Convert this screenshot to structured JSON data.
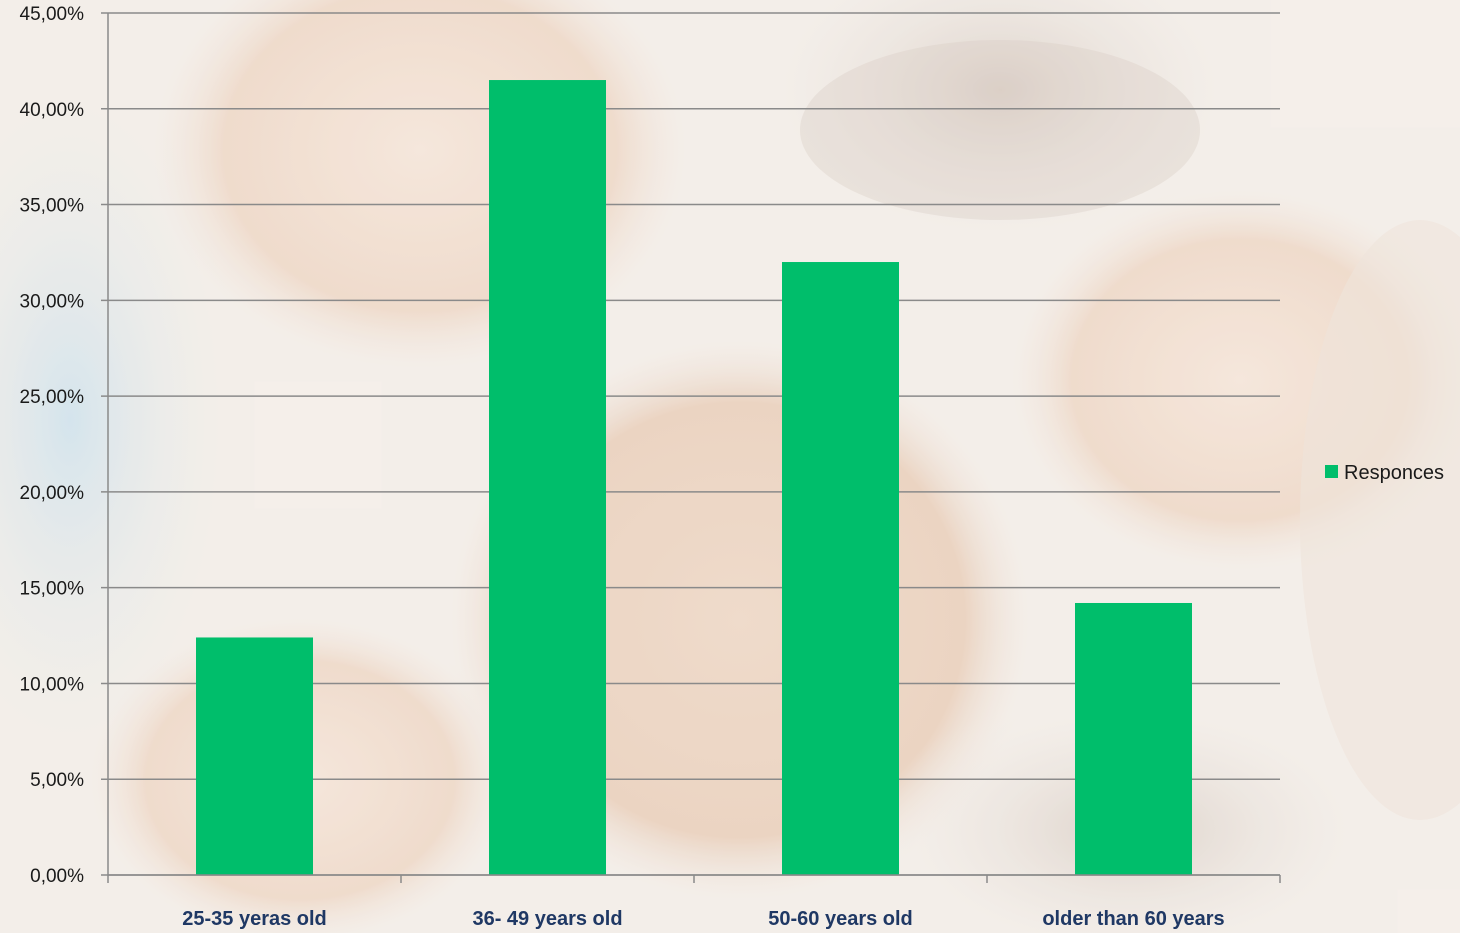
{
  "chart_data": {
    "type": "bar",
    "categories": [
      "25-35 yeras old",
      "36- 49 years old",
      "50-60 years old",
      "older than 60 years"
    ],
    "series": [
      {
        "name": "Responces",
        "values": [
          12.4,
          41.5,
          32.0,
          14.2
        ],
        "color": "#00be6b"
      }
    ],
    "ylim": [
      0,
      45
    ],
    "yticks": [
      0,
      5,
      10,
      15,
      20,
      25,
      30,
      35,
      40,
      45
    ],
    "ytick_labels": [
      "0,00%",
      "5,00%",
      "10,00%",
      "15,00%",
      "20,00%",
      "25,00%",
      "30,00%",
      "35,00%",
      "40,00%",
      "45,00%"
    ],
    "grid": true,
    "legend_position": "right",
    "title": "",
    "xlabel": "",
    "ylabel": ""
  },
  "colors": {
    "bar": "#00be6b",
    "gridline": "#8a8a8a",
    "category_label": "#1f3864",
    "background_photo": "faded group of smiling people"
  }
}
